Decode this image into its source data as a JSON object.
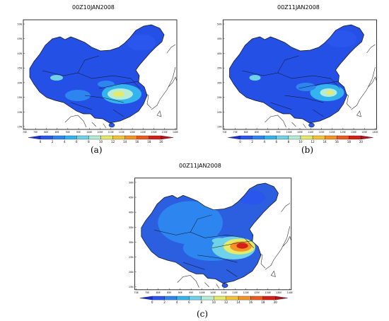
{
  "panels": [
    {
      "id": "a",
      "title": "00Z10JAN2008",
      "caption": "(a)"
    },
    {
      "id": "b",
      "title": "00Z11JAN2008",
      "caption": "(b)"
    },
    {
      "id": "c",
      "title": "00Z11JAN2008",
      "caption": "(c)"
    }
  ],
  "map": {
    "lon_labels": [
      "70E",
      "75E",
      "80E",
      "85E",
      "90E",
      "95E",
      "100E",
      "105E",
      "110E",
      "115E",
      "120E",
      "125E",
      "130E",
      "135E",
      "140E"
    ],
    "lat_labels": [
      "50N",
      "45N",
      "40N",
      "35N",
      "30N",
      "25N",
      "20N",
      "15N"
    ]
  },
  "colorbar": {
    "labels": [
      "0",
      "2",
      "4",
      "6",
      "8",
      "10",
      "12",
      "14",
      "16",
      "18",
      "20"
    ],
    "colors": [
      "#1a2fd6",
      "#2a56ee",
      "#2d86f0",
      "#34b4ee",
      "#6fd2e8",
      "#b4ecd6",
      "#e4ea6a",
      "#f3c338",
      "#f39425",
      "#ec5a1e",
      "#d42117",
      "#b4121e"
    ]
  }
}
